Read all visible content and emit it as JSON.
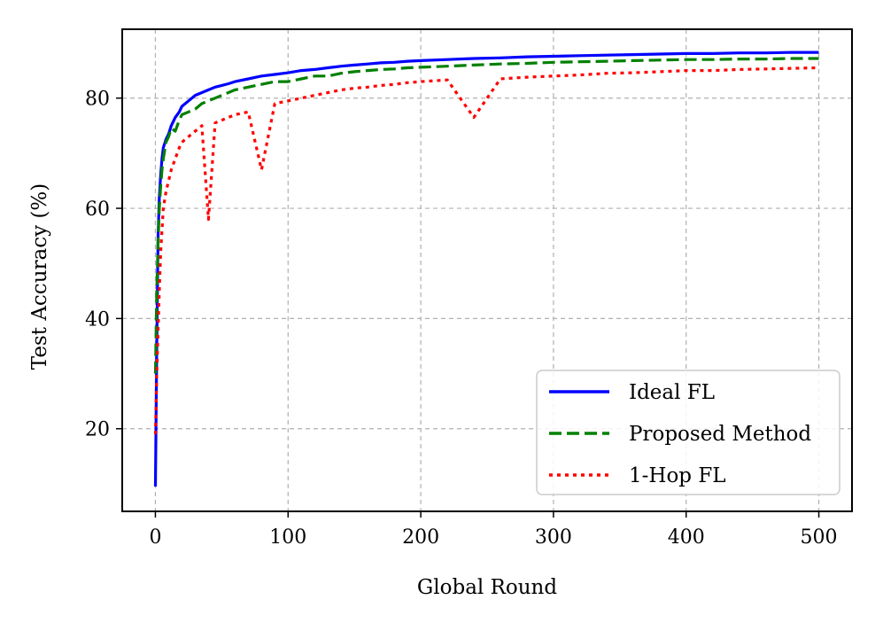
{
  "chart_data": {
    "type": "line",
    "xlabel": "Global Round",
    "ylabel": "Test Accuracy (%)",
    "xlim": [
      -25,
      525
    ],
    "ylim": [
      5,
      92.5
    ],
    "xticks": [
      0,
      100,
      200,
      300,
      400,
      500
    ],
    "yticks": [
      20,
      40,
      60,
      80
    ],
    "grid": true,
    "legend_position": "lower-right",
    "series": [
      {
        "name": "Ideal FL",
        "color": "#0000ff",
        "style": "solid",
        "x": [
          0,
          1,
          2,
          3,
          4,
          5,
          6,
          8,
          10,
          12,
          15,
          18,
          20,
          25,
          30,
          35,
          40,
          45,
          50,
          55,
          60,
          70,
          80,
          90,
          100,
          110,
          120,
          130,
          140,
          150,
          160,
          170,
          180,
          190,
          200,
          220,
          240,
          260,
          280,
          300,
          320,
          340,
          360,
          380,
          400,
          420,
          440,
          460,
          480,
          500
        ],
        "y": [
          9.5,
          35,
          55,
          62,
          66,
          69,
          71,
          72.5,
          73.5,
          75,
          76.5,
          77.5,
          78.5,
          79.5,
          80.5,
          81,
          81.5,
          82,
          82.3,
          82.6,
          83,
          83.5,
          84,
          84.3,
          84.6,
          85,
          85.2,
          85.5,
          85.8,
          86,
          86.2,
          86.4,
          86.5,
          86.7,
          86.8,
          87,
          87.2,
          87.3,
          87.5,
          87.6,
          87.7,
          87.8,
          87.9,
          88,
          88.1,
          88.1,
          88.2,
          88.2,
          88.3,
          88.3
        ]
      },
      {
        "name": "Proposed Method",
        "color": "#008000",
        "style": "dashed",
        "x": [
          0,
          1,
          2,
          3,
          4,
          5,
          6,
          8,
          10,
          12,
          15,
          18,
          20,
          25,
          30,
          35,
          40,
          45,
          50,
          55,
          60,
          70,
          80,
          90,
          100,
          110,
          120,
          130,
          140,
          150,
          160,
          170,
          180,
          190,
          200,
          220,
          240,
          260,
          280,
          300,
          320,
          340,
          360,
          380,
          400,
          420,
          440,
          460,
          480,
          500
        ],
        "y": [
          30,
          45,
          54,
          60,
          64,
          67,
          69,
          72,
          73,
          74.5,
          74,
          76,
          77,
          77.5,
          78,
          79,
          79.5,
          80,
          80.5,
          81,
          81.5,
          82,
          82.5,
          83,
          83,
          83.5,
          84,
          84,
          84.5,
          84.8,
          85,
          85.2,
          85.3,
          85.5,
          85.6,
          85.8,
          86,
          86.2,
          86.3,
          86.5,
          86.6,
          86.7,
          86.8,
          86.9,
          87,
          87,
          87.1,
          87.1,
          87.2,
          87.2
        ]
      },
      {
        "name": "1-Hop FL",
        "color": "#ff0000",
        "style": "dotted",
        "x": [
          0,
          1,
          2,
          3,
          4,
          5,
          6,
          8,
          10,
          12,
          15,
          18,
          20,
          25,
          30,
          35,
          40,
          45,
          50,
          55,
          60,
          70,
          80,
          90,
          100,
          110,
          120,
          130,
          140,
          150,
          160,
          170,
          180,
          190,
          200,
          220,
          240,
          260,
          280,
          300,
          320,
          340,
          360,
          380,
          400,
          420,
          440,
          460,
          480,
          500
        ],
        "y": [
          19,
          30,
          38,
          45,
          52,
          56,
          60,
          63,
          65,
          67,
          69,
          71,
          72,
          73,
          74,
          75,
          58,
          75.5,
          76,
          76.5,
          77,
          77.5,
          67,
          79,
          79.5,
          80,
          80.5,
          81,
          81.5,
          81.8,
          82,
          82.3,
          82.5,
          82.8,
          83,
          83.3,
          76.5,
          83.5,
          83.8,
          84,
          84.2,
          84.5,
          84.6,
          84.8,
          85,
          85,
          85.2,
          85.3,
          85.4,
          85.5
        ]
      }
    ]
  }
}
